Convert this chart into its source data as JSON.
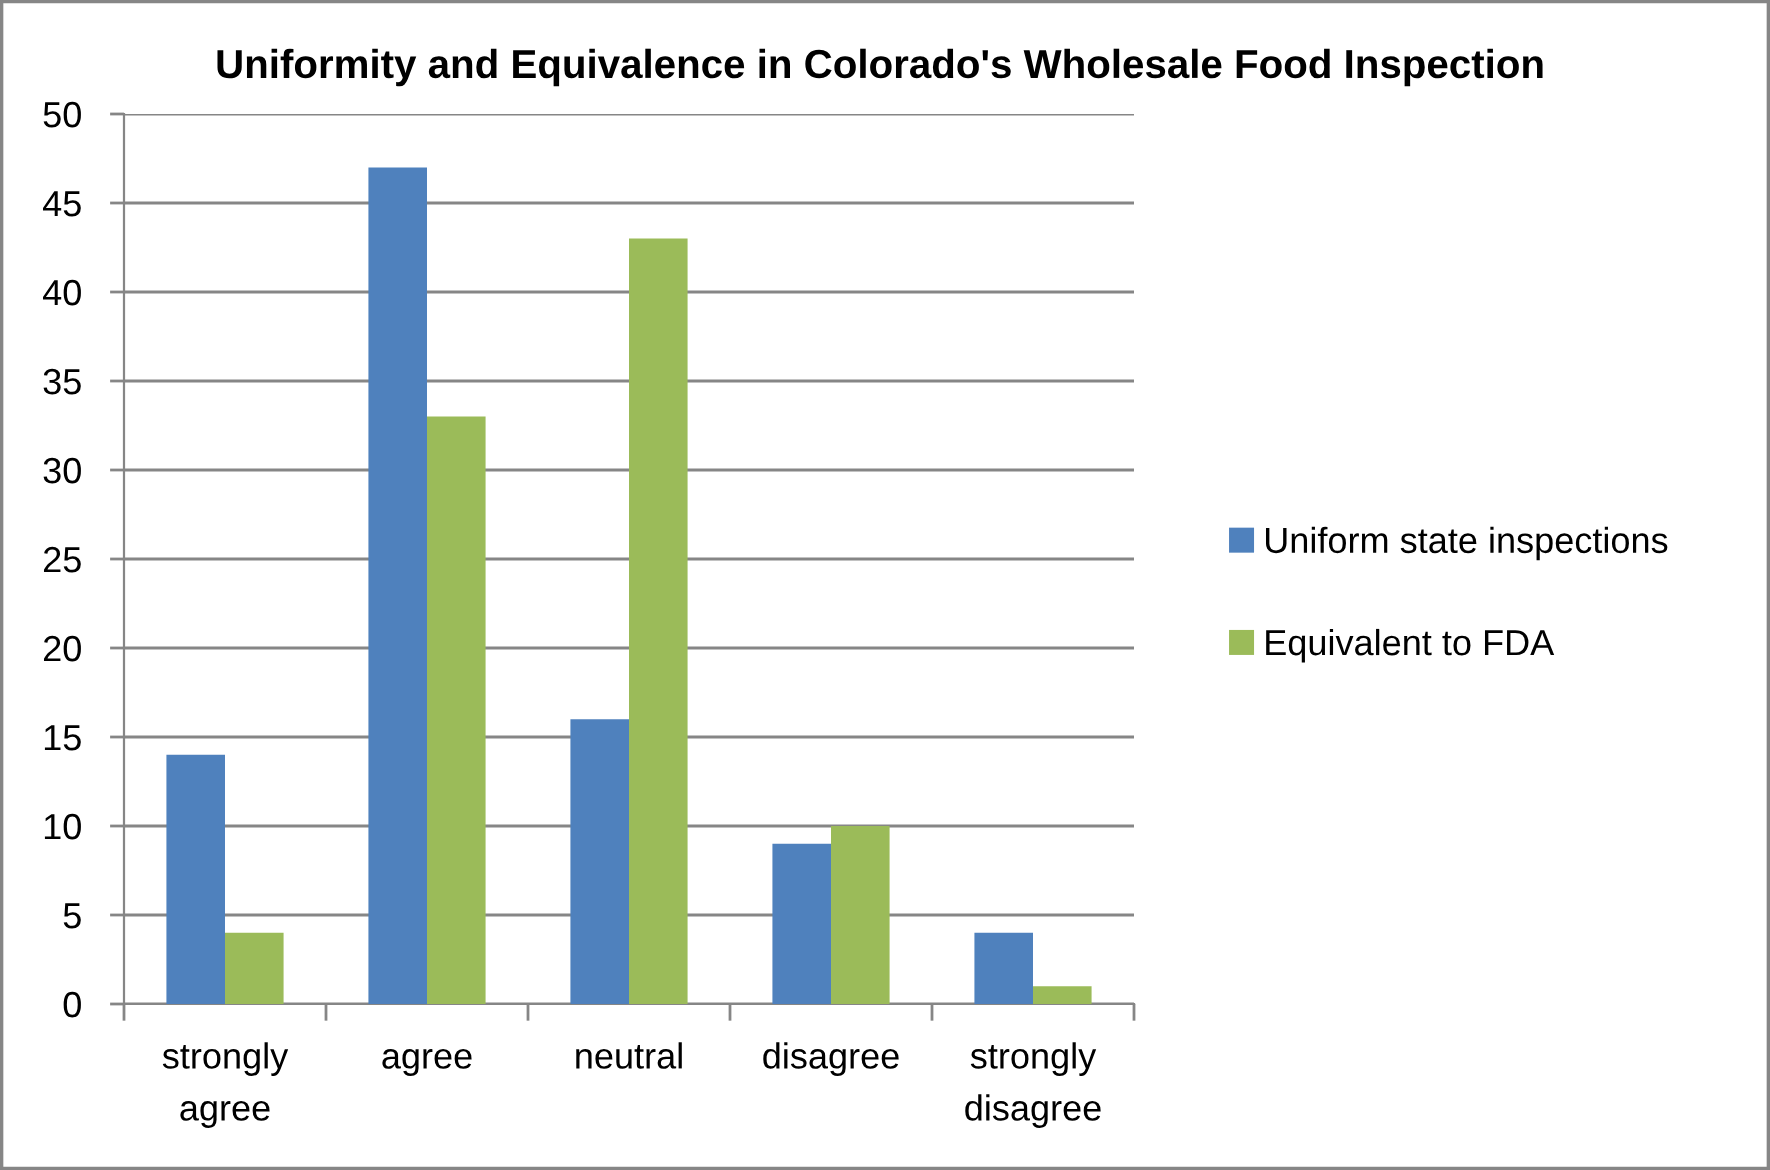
{
  "chart_data": {
    "type": "bar",
    "title": "Uniformity and Equivalence in Colorado's Wholesale Food Inspection",
    "categories": [
      "strongly agree",
      "agree",
      "neutral",
      "disagree",
      "strongly disagree"
    ],
    "series": [
      {
        "name": "Uniform state inspections",
        "color": "#4f81bd",
        "values": [
          14,
          47,
          16,
          9,
          4
        ]
      },
      {
        "name": "Equivalent to FDA",
        "color": "#9bbb59",
        "values": [
          4,
          33,
          43,
          10,
          1
        ]
      }
    ],
    "ylim": [
      0,
      50
    ],
    "yticks": [
      0,
      5,
      10,
      15,
      20,
      25,
      30,
      35,
      40,
      45,
      50
    ],
    "grid": "y",
    "legend": "right"
  }
}
